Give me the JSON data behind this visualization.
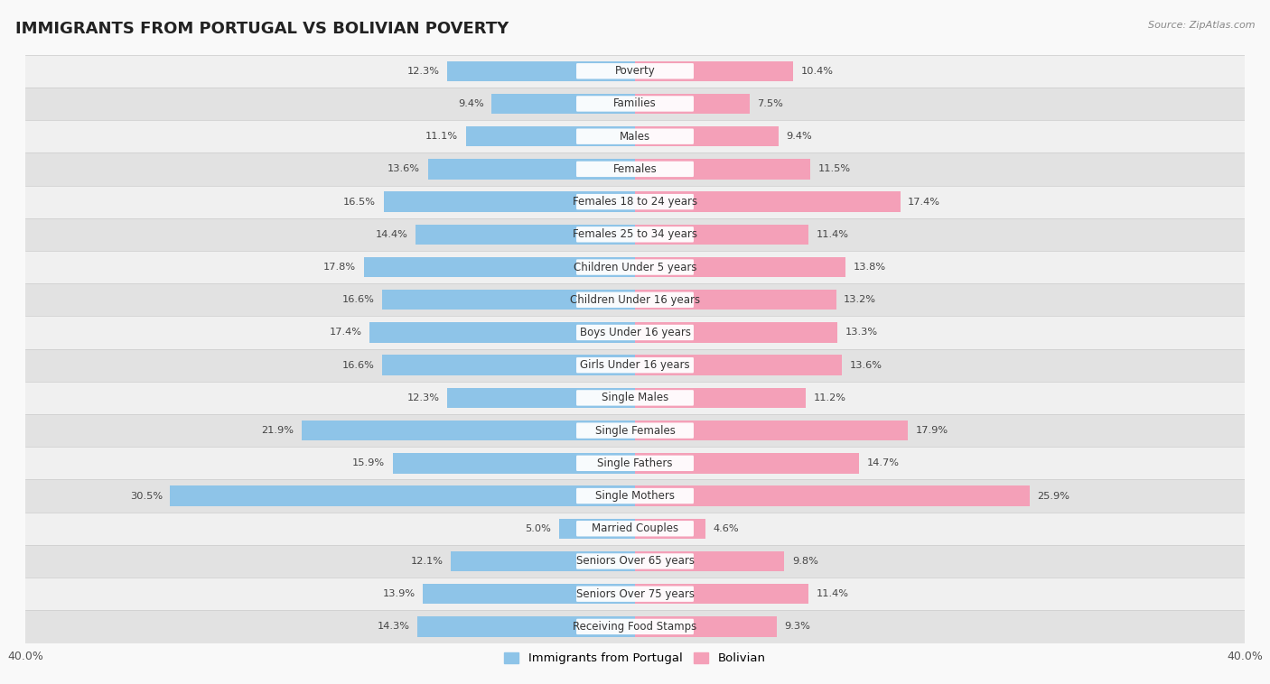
{
  "title": "IMMIGRANTS FROM PORTUGAL VS BOLIVIAN POVERTY",
  "source": "Source: ZipAtlas.com",
  "categories": [
    "Poverty",
    "Families",
    "Males",
    "Females",
    "Females 18 to 24 years",
    "Females 25 to 34 years",
    "Children Under 5 years",
    "Children Under 16 years",
    "Boys Under 16 years",
    "Girls Under 16 years",
    "Single Males",
    "Single Females",
    "Single Fathers",
    "Single Mothers",
    "Married Couples",
    "Seniors Over 65 years",
    "Seniors Over 75 years",
    "Receiving Food Stamps"
  ],
  "portugal_values": [
    12.3,
    9.4,
    11.1,
    13.6,
    16.5,
    14.4,
    17.8,
    16.6,
    17.4,
    16.6,
    12.3,
    21.9,
    15.9,
    30.5,
    5.0,
    12.1,
    13.9,
    14.3
  ],
  "bolivian_values": [
    10.4,
    7.5,
    9.4,
    11.5,
    17.4,
    11.4,
    13.8,
    13.2,
    13.3,
    13.6,
    11.2,
    17.9,
    14.7,
    25.9,
    4.6,
    9.8,
    11.4,
    9.3
  ],
  "portugal_color": "#8ec4e8",
  "bolivian_color": "#f4a0b8",
  "xlim": 40.0,
  "bar_height": 0.62,
  "bg_color": "#f9f9f9",
  "row_light_color": "#f0f0f0",
  "row_dark_color": "#e2e2e2",
  "sep_color": "#cccccc",
  "legend_portugal": "Immigrants from Portugal",
  "legend_bolivian": "Bolivian",
  "title_fontsize": 13,
  "label_fontsize": 8.5,
  "value_fontsize": 8.2
}
